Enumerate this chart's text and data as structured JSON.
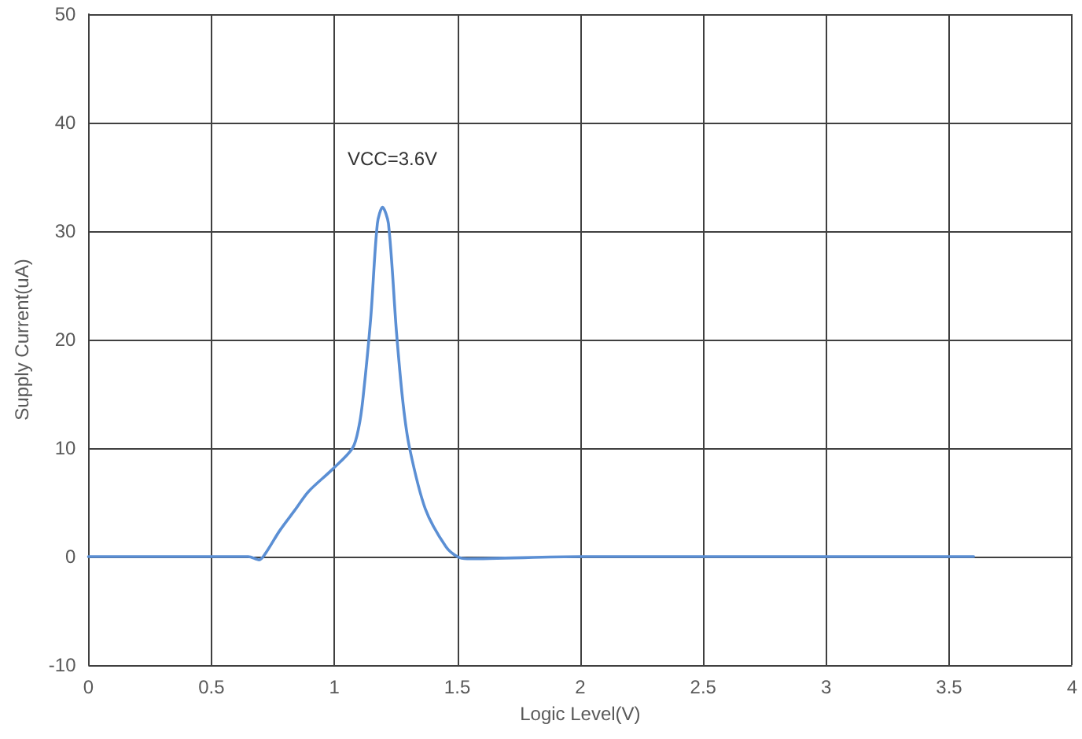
{
  "chart_data": {
    "type": "line",
    "xlabel": "Logic Level(V)",
    "ylabel": "Supply Current(uA)",
    "annotations": [
      "VCC=3.6V"
    ],
    "xlim": [
      0,
      4
    ],
    "xticks": [
      0,
      0.5,
      1,
      1.5,
      2,
      2.5,
      3,
      3.5,
      4
    ],
    "ylim": [
      -10,
      50
    ],
    "yticks": [
      -10,
      0,
      10,
      20,
      30,
      40,
      50
    ],
    "grid": true,
    "marker": "none",
    "line_style": "solid",
    "series": [
      {
        "color": "#5b8fd4",
        "x": [
          0,
          0.5,
          0.65,
          0.694,
          0.72,
          0.778,
          0.84,
          0.895,
          0.99,
          1.074,
          1.1,
          1.116,
          1.148,
          1.175,
          1.196,
          1.22,
          1.253,
          1.28,
          1.306,
          1.37,
          1.454,
          1.5,
          1.54,
          2,
          3,
          3.6
        ],
        "values": [
          0,
          0,
          0,
          -0.3,
          0.3,
          2.4,
          4.3,
          6,
          8,
          10,
          12,
          14.5,
          22,
          30.7,
          32.2,
          30.7,
          20.6,
          14,
          10,
          4.4,
          0.9,
          0,
          -0.2,
          0,
          0,
          0
        ]
      }
    ]
  }
}
